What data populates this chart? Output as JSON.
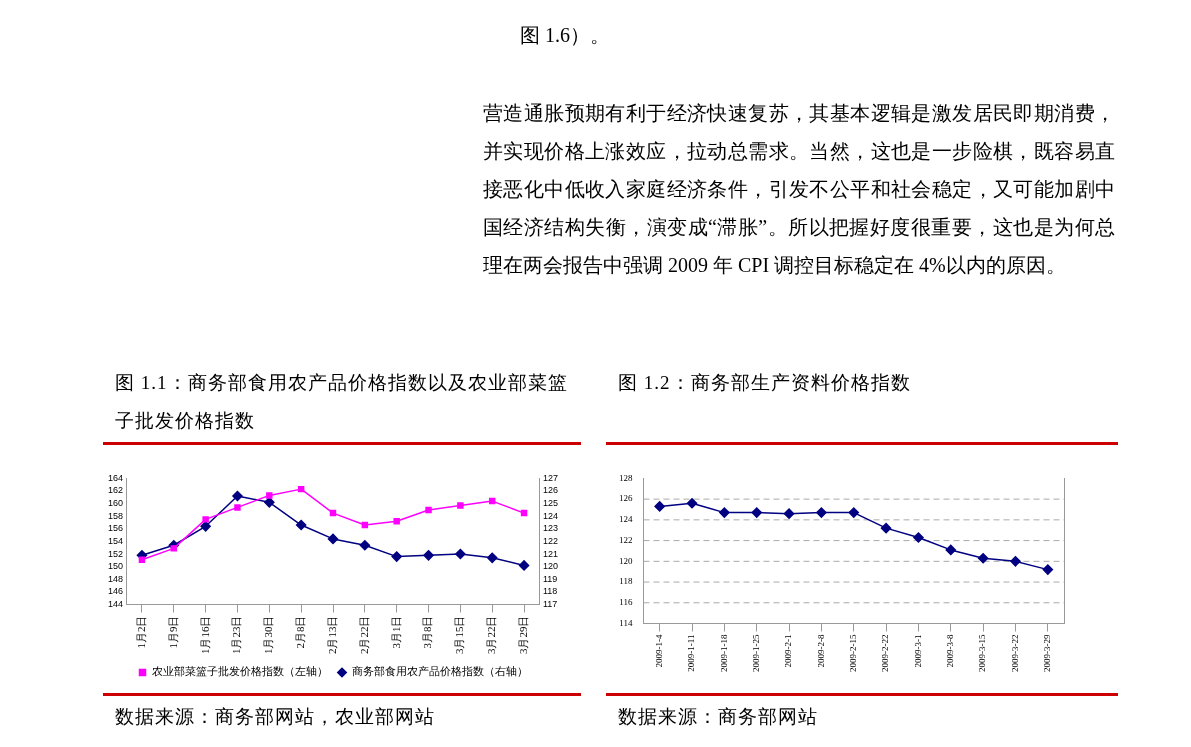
{
  "chart_data": [
    {
      "type": "line",
      "title": "图 1.1：商务部食用农产品价格指数以及农业部菜篮子批发价格指数",
      "categories": [
        "1月2日",
        "1月9日",
        "1月16日",
        "1月23日",
        "1月30日",
        "2月8日",
        "2月13日",
        "2月22日",
        "3月1日",
        "3月8日",
        "3月15日",
        "3月22日",
        "3月29日"
      ],
      "series": [
        {
          "name": "农业部菜篮子批发价格指数（左轴）",
          "color": "#ff00ff",
          "marker": "square",
          "values": [
            151.1,
            152.9,
            157.5,
            159.4,
            161.3,
            162.3,
            158.5,
            156.6,
            157.2,
            159.0,
            159.7,
            160.4,
            158.5
          ]
        },
        {
          "name": "商务部食用农产品价格指数（右轴）",
          "color": "#000080",
          "marker": "diamond",
          "axis": "y2",
          "values": [
            120.9,
            121.7,
            123.2,
            125.6,
            125.1,
            123.3,
            122.2,
            121.7,
            120.8,
            120.9,
            121.0,
            120.7,
            120.1
          ]
        }
      ],
      "ylim": [
        144,
        164
      ],
      "yticks": [
        144,
        146,
        148,
        150,
        152,
        154,
        156,
        158,
        160,
        162,
        164
      ],
      "y2lim": [
        117,
        127
      ],
      "y2ticks": [
        117,
        118,
        119,
        120,
        121,
        122,
        123,
        124,
        125,
        126,
        127
      ],
      "grid": false,
      "legend": "bottom",
      "annotations": [
        "图 1.6）。",
        "营造通胀预期有利于经济快速复苏，其基本逻辑是激发居民即期消费，并实现价格上涨效应，拉动总需求。当然，这也是一步险棋，既容易直接恶化中低收入家庭经济条件，引发不公平和社会稳定，又可能加剧中国经济结构失衡，演变成“滞胀”。所以把握好度很重要，这也是为何总理在两会报告中强调 2009 年 CPI 调控目标稳定在 4%以内的原因。",
        "数据来源：商务部网站，农业部网站"
      ]
    },
    {
      "type": "line",
      "title": "图 1.2：商务部生产资料价格指数",
      "categories": [
        "2009-1-4",
        "2009-1-11",
        "2009-1-18",
        "2009-1-25",
        "2009-2-1",
        "2009-2-8",
        "2009-2-15",
        "2009-2-22",
        "2009-3-1",
        "2009-3-8",
        "2009-3-15",
        "2009-3-22",
        "2009-3-29"
      ],
      "series": [
        {
          "color": "#000080",
          "values": [
            125.3,
            125.6,
            124.7,
            124.7,
            124.6,
            124.7,
            124.7,
            123.2,
            122.3,
            121.1,
            120.3,
            120.0,
            119.2
          ]
        }
      ],
      "marker": "diamond",
      "ylim": [
        114,
        128
      ],
      "yticks": [
        114,
        116,
        118,
        120,
        122,
        124,
        126,
        128
      ],
      "grid": "y",
      "legend": false,
      "annotations": [
        "数据来源：商务部网站"
      ]
    }
  ]
}
